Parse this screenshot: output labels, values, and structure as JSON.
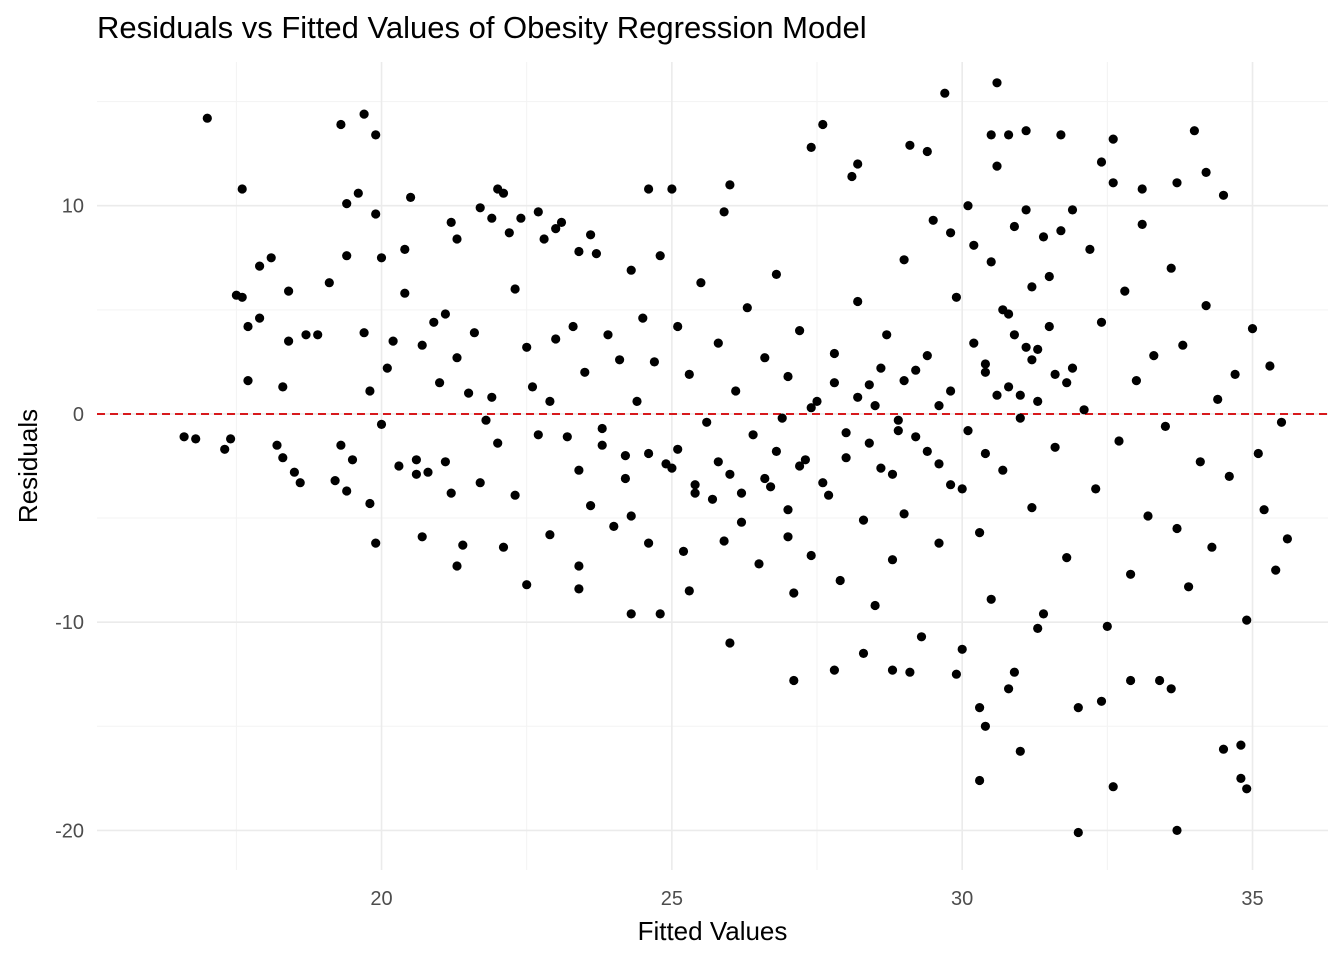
{
  "chart_data": {
    "type": "scatter",
    "title": "Residuals vs Fitted Values of Obesity Regression Model",
    "xlabel": "Fitted Values",
    "ylabel": "Residuals",
    "xlim": [
      15.1,
      36.3
    ],
    "ylim": [
      -21.9,
      16.9
    ],
    "x_ticks": [
      20,
      25,
      30,
      35
    ],
    "y_ticks": [
      -20,
      -10,
      0,
      10
    ],
    "grid": true,
    "reference_line": {
      "y": 0,
      "style": "dashed",
      "color": "#d7191c"
    },
    "point_color": "#000000",
    "points": [
      [
        16.6,
        -1.1
      ],
      [
        16.8,
        -1.2
      ],
      [
        17.0,
        14.2
      ],
      [
        17.3,
        -1.7
      ],
      [
        17.4,
        -1.2
      ],
      [
        17.5,
        5.7
      ],
      [
        17.6,
        5.6
      ],
      [
        17.6,
        10.8
      ],
      [
        17.7,
        4.2
      ],
      [
        17.7,
        1.6
      ],
      [
        17.9,
        4.6
      ],
      [
        17.9,
        7.1
      ],
      [
        18.1,
        7.5
      ],
      [
        18.2,
        -1.5
      ],
      [
        18.3,
        -2.1
      ],
      [
        18.3,
        1.3
      ],
      [
        18.4,
        3.5
      ],
      [
        18.4,
        5.9
      ],
      [
        18.5,
        -2.8
      ],
      [
        18.7,
        3.8
      ],
      [
        18.9,
        3.8
      ],
      [
        19.1,
        6.3
      ],
      [
        19.2,
        -3.2
      ],
      [
        19.3,
        -1.5
      ],
      [
        19.3,
        13.9
      ],
      [
        19.4,
        10.1
      ],
      [
        19.4,
        7.6
      ],
      [
        19.5,
        -2.2
      ],
      [
        19.6,
        10.6
      ],
      [
        19.7,
        14.4
      ],
      [
        19.7,
        3.9
      ],
      [
        19.8,
        -4.3
      ],
      [
        19.8,
        1.1
      ],
      [
        19.9,
        13.4
      ],
      [
        19.9,
        9.6
      ],
      [
        20.0,
        7.5
      ],
      [
        20.0,
        -0.5
      ],
      [
        20.1,
        2.2
      ],
      [
        20.2,
        3.5
      ],
      [
        20.3,
        -2.5
      ],
      [
        20.4,
        5.8
      ],
      [
        20.4,
        7.9
      ],
      [
        20.5,
        10.4
      ],
      [
        20.6,
        -2.2
      ],
      [
        20.7,
        3.3
      ],
      [
        20.8,
        -2.8
      ],
      [
        20.9,
        4.4
      ],
      [
        21.0,
        1.5
      ],
      [
        21.1,
        4.8
      ],
      [
        21.2,
        -3.8
      ],
      [
        21.3,
        8.4
      ],
      [
        21.3,
        2.7
      ],
      [
        21.4,
        -6.3
      ],
      [
        21.5,
        1.0
      ],
      [
        21.6,
        3.9
      ],
      [
        21.7,
        -3.3
      ],
      [
        21.8,
        -0.3
      ],
      [
        21.9,
        9.4
      ],
      [
        21.9,
        0.8
      ],
      [
        22.0,
        -1.4
      ],
      [
        22.2,
        8.7
      ],
      [
        22.3,
        6.0
      ],
      [
        22.3,
        -3.9
      ],
      [
        22.4,
        9.4
      ],
      [
        22.5,
        3.2
      ],
      [
        22.6,
        1.3
      ],
      [
        22.7,
        -1.0
      ],
      [
        22.8,
        8.4
      ],
      [
        22.9,
        -5.8
      ],
      [
        22.9,
        0.6
      ],
      [
        23.0,
        3.6
      ],
      [
        23.1,
        9.2
      ],
      [
        23.2,
        -1.1
      ],
      [
        23.3,
        4.2
      ],
      [
        23.4,
        7.8
      ],
      [
        23.4,
        -7.3
      ],
      [
        23.5,
        2.0
      ],
      [
        23.6,
        -4.4
      ],
      [
        23.7,
        7.7
      ],
      [
        23.8,
        -0.7
      ],
      [
        23.9,
        3.8
      ],
      [
        24.0,
        -5.4
      ],
      [
        24.1,
        2.6
      ],
      [
        24.2,
        -2.0
      ],
      [
        24.3,
        6.9
      ],
      [
        24.3,
        -4.9
      ],
      [
        24.4,
        0.6
      ],
      [
        24.5,
        4.6
      ],
      [
        24.6,
        -6.2
      ],
      [
        24.7,
        2.5
      ],
      [
        24.8,
        7.6
      ],
      [
        24.9,
        -2.4
      ],
      [
        25.0,
        10.8
      ],
      [
        25.1,
        -1.7
      ],
      [
        25.1,
        4.2
      ],
      [
        25.2,
        -6.6
      ],
      [
        25.3,
        1.9
      ],
      [
        25.4,
        -3.8
      ],
      [
        25.5,
        6.3
      ],
      [
        25.6,
        -0.4
      ],
      [
        25.7,
        -4.1
      ],
      [
        25.8,
        3.4
      ],
      [
        25.9,
        -6.1
      ],
      [
        25.9,
        9.7
      ],
      [
        26.0,
        -2.9
      ],
      [
        26.1,
        1.1
      ],
      [
        26.2,
        -5.2
      ],
      [
        26.3,
        5.1
      ],
      [
        26.4,
        -1.0
      ],
      [
        26.5,
        -7.2
      ],
      [
        26.6,
        2.7
      ],
      [
        26.7,
        -3.5
      ],
      [
        26.8,
        6.7
      ],
      [
        26.9,
        -0.2
      ],
      [
        27.0,
        -5.9
      ],
      [
        27.0,
        1.8
      ],
      [
        27.1,
        -8.6
      ],
      [
        27.2,
        4.0
      ],
      [
        27.3,
        -2.2
      ],
      [
        27.4,
        -6.8
      ],
      [
        27.5,
        0.6
      ],
      [
        27.6,
        13.9
      ],
      [
        27.7,
        -3.9
      ],
      [
        27.8,
        2.9
      ],
      [
        27.9,
        -8.0
      ],
      [
        28.0,
        -0.9
      ],
      [
        28.1,
        11.4
      ],
      [
        28.2,
        5.4
      ],
      [
        28.3,
        -5.1
      ],
      [
        28.4,
        1.4
      ],
      [
        28.5,
        -9.2
      ],
      [
        28.6,
        -2.6
      ],
      [
        28.7,
        3.8
      ],
      [
        28.8,
        -7.0
      ],
      [
        28.9,
        -0.3
      ],
      [
        29.0,
        7.4
      ],
      [
        29.0,
        -4.8
      ],
      [
        29.1,
        12.9
      ],
      [
        29.2,
        2.1
      ],
      [
        29.3,
        -10.7
      ],
      [
        29.4,
        -1.8
      ],
      [
        29.5,
        9.3
      ],
      [
        29.6,
        -6.2
      ],
      [
        29.6,
        0.4
      ],
      [
        29.7,
        15.4
      ],
      [
        29.8,
        -3.4
      ],
      [
        29.9,
        5.6
      ],
      [
        30.0,
        -11.3
      ],
      [
        30.1,
        -0.8
      ],
      [
        30.2,
        8.1
      ],
      [
        30.3,
        -5.7
      ],
      [
        30.4,
        2.4
      ],
      [
        30.5,
        -8.9
      ],
      [
        30.6,
        11.9
      ],
      [
        30.7,
        -2.7
      ],
      [
        30.8,
        4.8
      ],
      [
        30.9,
        -12.4
      ],
      [
        31.0,
        0.9
      ],
      [
        31.1,
        9.8
      ],
      [
        31.2,
        -4.5
      ],
      [
        31.3,
        3.1
      ],
      [
        31.4,
        -9.6
      ],
      [
        31.5,
        6.6
      ],
      [
        31.6,
        -1.6
      ],
      [
        31.7,
        13.4
      ],
      [
        31.8,
        -6.9
      ],
      [
        31.9,
        2.2
      ],
      [
        32.0,
        -14.1
      ],
      [
        32.1,
        0.2
      ],
      [
        32.2,
        7.9
      ],
      [
        32.3,
        -3.6
      ],
      [
        32.4,
        4.4
      ],
      [
        32.5,
        -10.2
      ],
      [
        32.6,
        11.1
      ],
      [
        32.7,
        -1.3
      ],
      [
        32.8,
        5.9
      ],
      [
        32.9,
        -7.7
      ],
      [
        33.0,
        1.6
      ],
      [
        33.1,
        9.1
      ],
      [
        33.2,
        -4.9
      ],
      [
        33.3,
        2.8
      ],
      [
        33.4,
        -12.8
      ],
      [
        33.5,
        -0.6
      ],
      [
        33.6,
        7.0
      ],
      [
        33.7,
        -5.5
      ],
      [
        33.8,
        3.3
      ],
      [
        33.9,
        -8.3
      ],
      [
        34.0,
        13.6
      ],
      [
        34.1,
        -2.3
      ],
      [
        34.2,
        5.2
      ],
      [
        34.3,
        -6.4
      ],
      [
        34.4,
        0.7
      ],
      [
        34.5,
        10.5
      ],
      [
        34.6,
        -3.0
      ],
      [
        34.7,
        1.9
      ],
      [
        34.8,
        -17.5
      ],
      [
        34.9,
        -9.9
      ],
      [
        35.0,
        4.1
      ],
      [
        35.1,
        -1.9
      ],
      [
        35.2,
        -4.6
      ],
      [
        35.3,
        2.3
      ],
      [
        35.4,
        -7.5
      ],
      [
        35.5,
        -0.4
      ],
      [
        35.6,
        -6.0
      ],
      [
        30.6,
        15.9
      ],
      [
        29.1,
        -12.4
      ],
      [
        27.1,
        -12.8
      ],
      [
        26.0,
        -11.0
      ],
      [
        30.3,
        -17.6
      ],
      [
        30.4,
        -15.0
      ],
      [
        31.0,
        -16.2
      ],
      [
        32.0,
        -20.1
      ],
      [
        32.6,
        -17.9
      ],
      [
        33.7,
        -20.0
      ],
      [
        34.5,
        -16.1
      ],
      [
        34.8,
        -15.9
      ],
      [
        34.9,
        -18.0
      ],
      [
        32.4,
        -13.8
      ],
      [
        32.9,
        -12.8
      ],
      [
        33.6,
        -13.2
      ],
      [
        31.3,
        -10.3
      ],
      [
        30.8,
        -13.2
      ],
      [
        30.3,
        -14.1
      ],
      [
        29.9,
        -12.5
      ],
      [
        28.8,
        -12.3
      ],
      [
        28.3,
        -11.5
      ],
      [
        27.8,
        -12.3
      ],
      [
        25.3,
        -8.5
      ],
      [
        24.3,
        -9.6
      ],
      [
        24.8,
        -9.6
      ],
      [
        22.5,
        -8.2
      ],
      [
        23.4,
        -8.4
      ],
      [
        21.3,
        -7.3
      ],
      [
        19.9,
        -6.2
      ],
      [
        20.7,
        -5.9
      ],
      [
        18.6,
        -3.3
      ],
      [
        19.4,
        -3.7
      ],
      [
        20.6,
        -2.9
      ],
      [
        21.1,
        -2.3
      ],
      [
        22.1,
        -6.4
      ],
      [
        32.6,
        13.2
      ],
      [
        33.1,
        10.8
      ],
      [
        33.7,
        11.1
      ],
      [
        34.2,
        11.6
      ],
      [
        32.4,
        12.1
      ],
      [
        31.1,
        13.6
      ],
      [
        30.8,
        13.4
      ],
      [
        30.5,
        13.4
      ],
      [
        29.4,
        12.6
      ],
      [
        28.2,
        12.0
      ],
      [
        27.4,
        12.8
      ],
      [
        26.0,
        11.0
      ],
      [
        24.6,
        10.8
      ],
      [
        22.1,
        10.6
      ],
      [
        22.0,
        10.8
      ],
      [
        21.7,
        9.9
      ],
      [
        21.2,
        9.2
      ],
      [
        22.7,
        9.7
      ],
      [
        23.0,
        8.9
      ],
      [
        23.6,
        8.6
      ],
      [
        31.4,
        8.5
      ],
      [
        31.7,
        8.8
      ],
      [
        31.9,
        9.8
      ],
      [
        30.9,
        9.0
      ],
      [
        30.1,
        10.0
      ],
      [
        29.8,
        8.7
      ],
      [
        30.5,
        7.3
      ],
      [
        31.2,
        6.1
      ],
      [
        30.7,
        5.0
      ],
      [
        31.5,
        4.2
      ],
      [
        30.9,
        3.8
      ],
      [
        31.2,
        2.6
      ],
      [
        31.6,
        1.9
      ],
      [
        30.8,
        1.3
      ],
      [
        31.3,
        0.6
      ],
      [
        31.0,
        -0.2
      ],
      [
        30.6,
        0.9
      ],
      [
        31.8,
        1.5
      ],
      [
        31.1,
        3.2
      ],
      [
        30.4,
        2.0
      ],
      [
        27.0,
        -4.6
      ],
      [
        26.6,
        -3.1
      ],
      [
        26.2,
        -3.8
      ],
      [
        25.8,
        -2.3
      ],
      [
        25.4,
        -3.4
      ],
      [
        25.0,
        -2.6
      ],
      [
        24.6,
        -1.9
      ],
      [
        24.2,
        -3.1
      ],
      [
        23.8,
        -1.5
      ],
      [
        23.4,
        -2.7
      ],
      [
        26.8,
        -1.8
      ],
      [
        27.2,
        -2.5
      ],
      [
        27.6,
        -3.3
      ],
      [
        28.0,
        -2.1
      ],
      [
        28.4,
        -1.4
      ],
      [
        28.8,
        -2.9
      ],
      [
        29.2,
        -1.1
      ],
      [
        29.6,
        -2.4
      ],
      [
        30.0,
        -3.6
      ],
      [
        30.4,
        -1.9
      ],
      [
        29.0,
        1.6
      ],
      [
        28.6,
        2.2
      ],
      [
        28.2,
        0.8
      ],
      [
        27.8,
        1.5
      ],
      [
        27.4,
        0.3
      ],
      [
        29.4,
        2.8
      ],
      [
        29.8,
        1.1
      ],
      [
        30.2,
        3.4
      ],
      [
        28.9,
        -0.8
      ],
      [
        28.5,
        0.4
      ]
    ]
  }
}
